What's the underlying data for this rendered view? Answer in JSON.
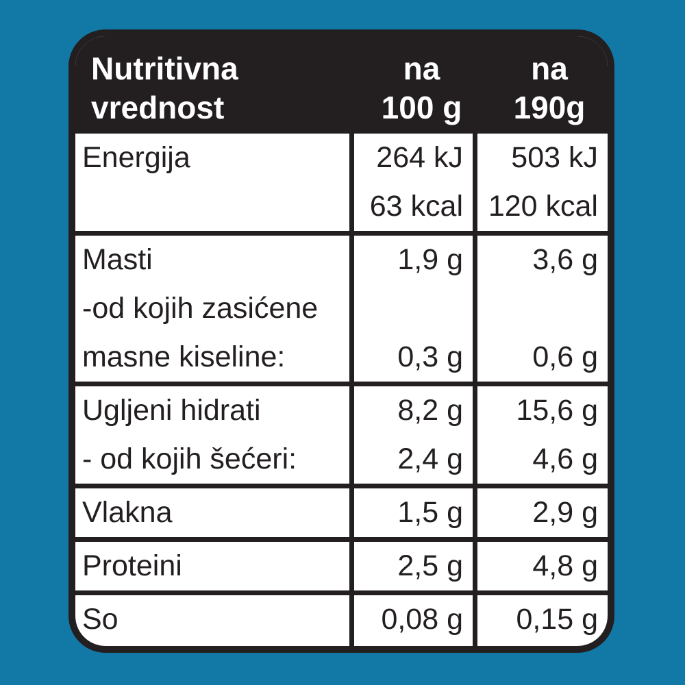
{
  "colors": {
    "background": "#1279A7",
    "ink": "#231F20",
    "card_background": "#FFFFFF",
    "header_background": "#231F20",
    "header_text": "#FFFFFF"
  },
  "header": {
    "title_lines": [
      "Nutritivna",
      "vrednost"
    ],
    "per100_lines": [
      "na",
      "100 g"
    ],
    "per190_lines": [
      "na",
      "190g"
    ]
  },
  "rows": [
    {
      "label_lines": [
        "Energija"
      ],
      "per100_lines": [
        "264 kJ",
        "63 kcal"
      ],
      "per190_lines": [
        "503 kJ",
        "120 kcal"
      ]
    },
    {
      "label_lines": [
        "Masti",
        "-od kojih zasićene",
        "masne kiseline:"
      ],
      "per100_lines": [
        "1,9 g",
        "",
        "0,3 g"
      ],
      "per190_lines": [
        "3,6 g",
        "",
        "0,6 g"
      ]
    },
    {
      "label_lines": [
        "Ugljeni hidrati",
        "- od kojih šećeri:"
      ],
      "per100_lines": [
        "8,2 g",
        "2,4 g"
      ],
      "per190_lines": [
        "15,6 g",
        "4,6 g"
      ]
    },
    {
      "label_lines": [
        "Vlakna"
      ],
      "per100_lines": [
        "1,5 g"
      ],
      "per190_lines": [
        "2,9 g"
      ]
    },
    {
      "label_lines": [
        "Proteini"
      ],
      "per100_lines": [
        "2,5 g"
      ],
      "per190_lines": [
        "4,8 g"
      ]
    },
    {
      "label_lines": [
        "So"
      ],
      "per100_lines": [
        "0,08 g"
      ],
      "per190_lines": [
        "0,15 g"
      ]
    }
  ]
}
